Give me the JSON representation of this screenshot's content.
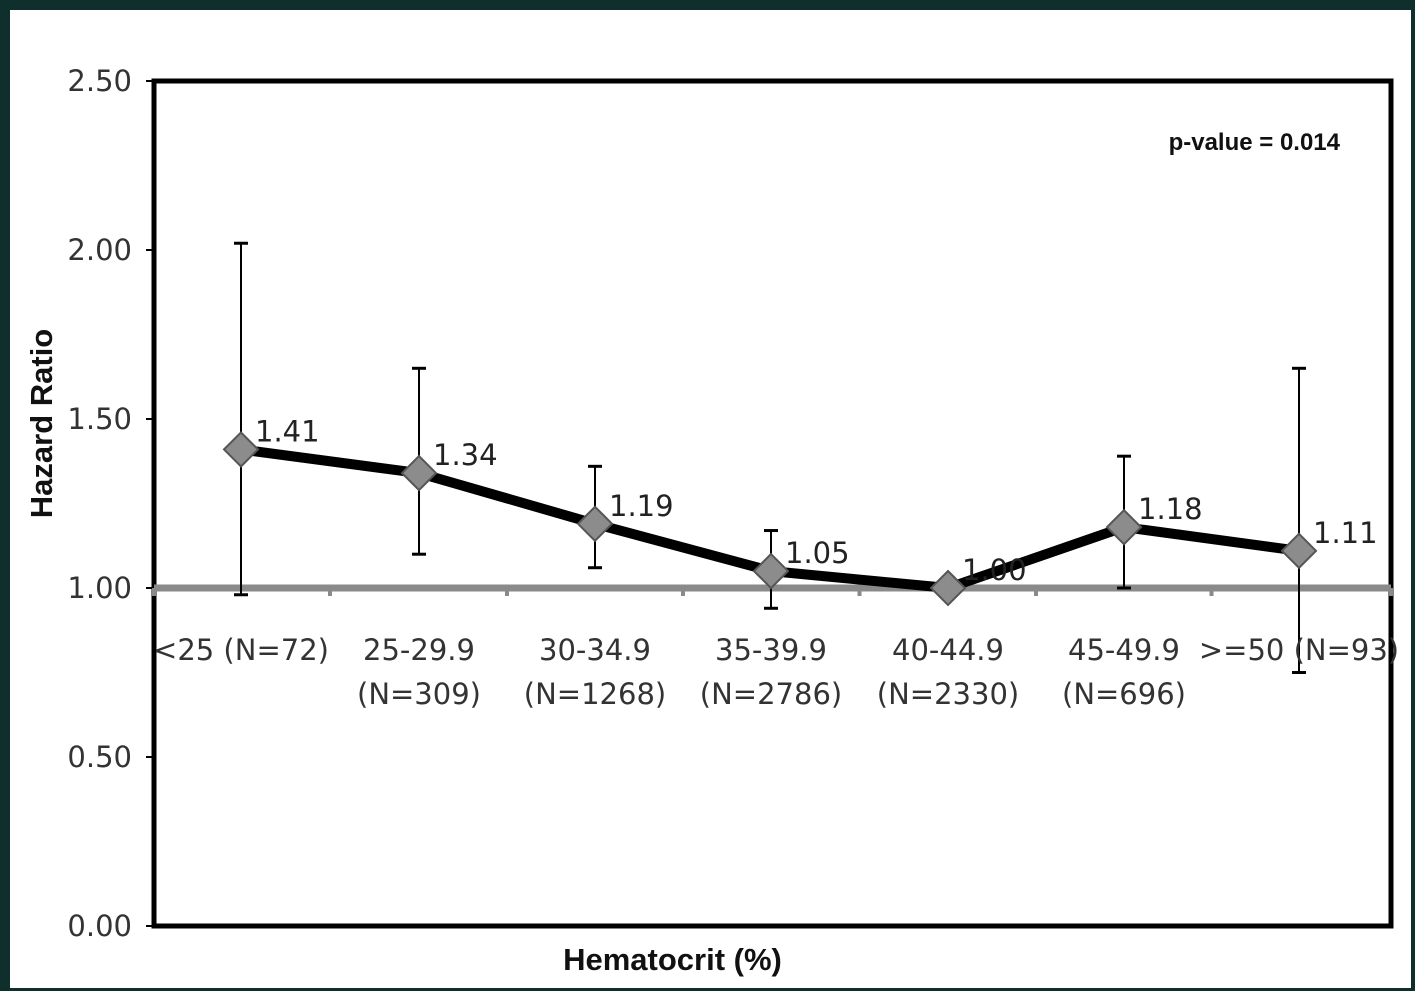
{
  "chart_data": {
    "type": "line",
    "ylabel": "Hazard Ratio",
    "xlabel": "Hematocrit (%)",
    "annotation": "p-value = 0.014",
    "ylim": [
      0,
      2.5
    ],
    "yticks": [
      "0.00",
      "0.50",
      "1.00",
      "1.50",
      "2.00",
      "2.50"
    ],
    "reference_line": 1.0,
    "categories": [
      [
        "<25",
        "(N=72)"
      ],
      [
        "25-29.9",
        "(N=309)"
      ],
      [
        "30-34.9",
        "(N=1268)"
      ],
      [
        "35-39.9",
        "(N=2786)"
      ],
      [
        "40-44.9",
        "(N=2330)"
      ],
      [
        "45-49.9",
        "(N=696)"
      ],
      [
        ">=50",
        "(N=93)"
      ]
    ],
    "values": [
      1.41,
      1.34,
      1.19,
      1.05,
      1.0,
      1.18,
      1.11
    ],
    "value_labels": [
      "1.41",
      "1.34",
      "1.19",
      "1.05",
      "1.00",
      "1.18",
      "1.11"
    ],
    "ci_lower": [
      0.98,
      1.1,
      1.06,
      0.94,
      1.0,
      1.0,
      0.75
    ],
    "ci_upper": [
      2.02,
      1.65,
      1.36,
      1.17,
      1.0,
      1.39,
      1.65
    ],
    "grid": false,
    "colors": {
      "line": "#000000",
      "marker": "#8c8c8c",
      "reference": "#8a8a8a",
      "frame": "#000000"
    }
  }
}
